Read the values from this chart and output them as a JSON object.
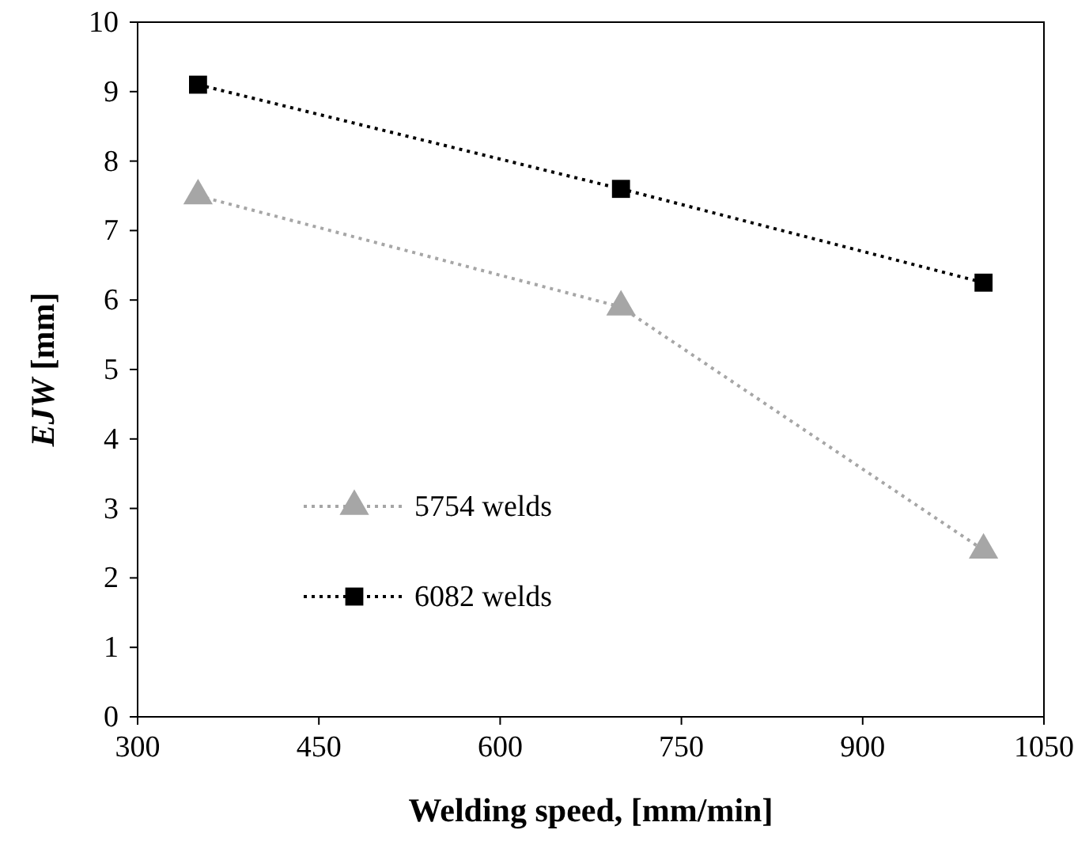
{
  "chart_data": {
    "type": "line",
    "xlabel": "Welding speed, [mm/min]",
    "ylabel": "EJW [mm]",
    "xlim": [
      300,
      1050
    ],
    "xticks": [
      300,
      450,
      600,
      750,
      900,
      1050
    ],
    "ylim": [
      0,
      10
    ],
    "yticks": [
      0,
      1,
      2,
      3,
      4,
      5,
      6,
      7,
      8,
      9,
      10
    ],
    "x": [
      350,
      700,
      1000
    ],
    "grid": false,
    "legend": "bottom left",
    "line_style": "dotted",
    "series": [
      {
        "name": "5754 welds",
        "color": "#a6a6a6",
        "marker": "triangle",
        "values": [
          7.5,
          5.9,
          2.4
        ]
      },
      {
        "name": "6082 welds",
        "color": "#000000",
        "marker": "square",
        "values": [
          9.1,
          7.6,
          6.25
        ]
      }
    ]
  }
}
